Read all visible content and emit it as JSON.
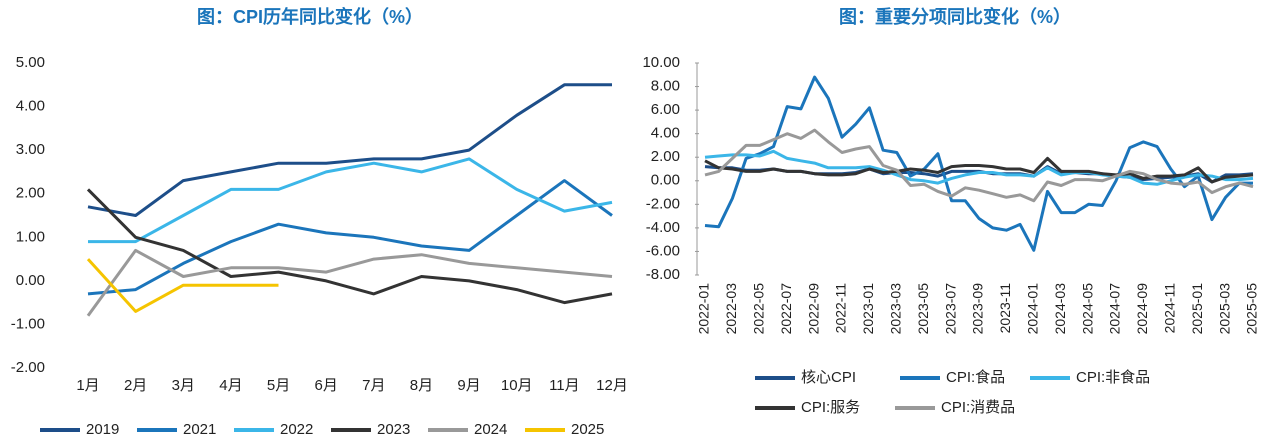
{
  "chart_data": [
    {
      "type": "line",
      "title": "图：CPI历年同比变化（%）",
      "categories": [
        "1月",
        "2月",
        "3月",
        "4月",
        "5月",
        "6月",
        "7月",
        "8月",
        "9月",
        "10月",
        "11月",
        "12月"
      ],
      "ylim": [
        -2,
        5
      ],
      "yticks": [
        {
          "value": -2,
          "label": "-2.00"
        },
        {
          "value": -1,
          "label": "-1.00"
        },
        {
          "value": 0,
          "label": "0.00"
        },
        {
          "value": 1,
          "label": "1.00"
        },
        {
          "value": 2,
          "label": "2.00"
        },
        {
          "value": 3,
          "label": "3.00"
        },
        {
          "value": 4,
          "label": "4.00"
        },
        {
          "value": 5,
          "label": "5.00"
        }
      ],
      "legend": "bottom",
      "series": [
        {
          "name": "2019",
          "color": "#1d4e89",
          "values": [
            1.7,
            1.5,
            2.3,
            2.5,
            2.7,
            2.7,
            2.8,
            2.8,
            3.0,
            3.8,
            4.5,
            4.5
          ]
        },
        {
          "name": "2021",
          "color": "#1b75bb",
          "values": [
            -0.3,
            -0.2,
            0.4,
            0.9,
            1.3,
            1.1,
            1.0,
            0.8,
            0.7,
            1.5,
            2.3,
            1.5
          ]
        },
        {
          "name": "2022",
          "color": "#3bb6e8",
          "values": [
            0.9,
            0.9,
            1.5,
            2.1,
            2.1,
            2.5,
            2.7,
            2.5,
            2.8,
            2.1,
            1.6,
            1.8
          ]
        },
        {
          "name": "2023",
          "color": "#333333",
          "values": [
            2.1,
            1.0,
            0.7,
            0.1,
            0.2,
            0.0,
            -0.3,
            0.1,
            0.0,
            -0.2,
            -0.5,
            -0.3
          ]
        },
        {
          "name": "2024",
          "color": "#999999",
          "values": [
            -0.8,
            0.7,
            0.1,
            0.3,
            0.3,
            0.2,
            0.5,
            0.6,
            0.4,
            0.3,
            0.2,
            0.1
          ]
        },
        {
          "name": "2025",
          "color": "#f5c400",
          "values": [
            0.5,
            -0.7,
            -0.1,
            -0.1,
            -0.1,
            null,
            null,
            null,
            null,
            null,
            null,
            null
          ]
        }
      ]
    },
    {
      "type": "line",
      "title": "图：重要分项同比变化（%）",
      "categories": [
        "2022-01",
        null,
        "2022-03",
        null,
        "2022-05",
        null,
        "2022-07",
        null,
        "2022-09",
        null,
        "2022-11",
        null,
        "2023-01",
        null,
        "2023-03",
        null,
        "2023-05",
        null,
        "2023-07",
        null,
        "2023-09",
        null,
        "2023-11",
        null,
        "2024-01",
        null,
        "2024-03",
        null,
        "2024-05",
        null,
        "2024-07",
        null,
        "2024-09",
        null,
        "2024-11",
        null,
        "2025-01",
        null,
        "2025-03",
        null,
        "2025-05"
      ],
      "ylim": [
        -8,
        10
      ],
      "yticks": [
        {
          "value": -8,
          "label": "-8.00"
        },
        {
          "value": -6,
          "label": "-6.00"
        },
        {
          "value": -4,
          "label": "-4.00"
        },
        {
          "value": -2,
          "label": "-2.00"
        },
        {
          "value": 0,
          "label": "0.00"
        },
        {
          "value": 2,
          "label": "2.00"
        },
        {
          "value": 4,
          "label": "4.00"
        },
        {
          "value": 6,
          "label": "6.00"
        },
        {
          "value": 8,
          "label": "8.00"
        },
        {
          "value": 10,
          "label": "10.00"
        }
      ],
      "legend": "bottom",
      "series": [
        {
          "name": "核心CPI",
          "color": "#1d4e89",
          "values": [
            1.2,
            1.1,
            1.1,
            0.9,
            0.9,
            1.0,
            0.8,
            0.8,
            0.6,
            0.6,
            0.6,
            0.7,
            1.0,
            0.6,
            0.7,
            0.7,
            0.6,
            0.4,
            0.8,
            0.8,
            0.8,
            0.6,
            0.6,
            0.6,
            0.4,
            1.2,
            0.6,
            0.7,
            0.6,
            0.6,
            0.4,
            0.3,
            0.1,
            0.2,
            0.3,
            0.4,
            0.6,
            -0.1,
            0.5,
            0.5,
            0.6
          ]
        },
        {
          "name": "CPI:食品",
          "color": "#1b75bb",
          "values": [
            -3.8,
            -3.9,
            -1.5,
            1.9,
            2.3,
            2.9,
            6.3,
            6.1,
            8.8,
            7.0,
            3.7,
            4.8,
            6.2,
            2.6,
            2.4,
            0.4,
            1.0,
            2.3,
            -1.7,
            -1.7,
            -3.2,
            -4.0,
            -4.2,
            -3.7,
            -5.9,
            -0.9,
            -2.7,
            -2.7,
            -2.0,
            -2.1,
            0.0,
            2.8,
            3.3,
            2.9,
            1.0,
            -0.5,
            0.4,
            -3.3,
            -1.4,
            -0.2,
            -0.2
          ]
        },
        {
          "name": "CPI:非食品",
          "color": "#3bb6e8",
          "values": [
            2.0,
            2.1,
            2.2,
            2.2,
            2.1,
            2.5,
            1.9,
            1.7,
            1.5,
            1.1,
            1.1,
            1.1,
            1.2,
            0.9,
            0.5,
            0.1,
            0.0,
            -0.2,
            0.2,
            0.5,
            0.7,
            0.7,
            0.5,
            0.5,
            0.4,
            1.1,
            0.5,
            0.7,
            0.7,
            0.5,
            0.4,
            0.3,
            -0.2,
            -0.3,
            0.0,
            0.3,
            0.5,
            0.4,
            0.1,
            0.1,
            0.2
          ]
        },
        {
          "name": "CPI:服务",
          "color": "#333333",
          "values": [
            1.7,
            1.1,
            1.0,
            0.8,
            0.8,
            1.0,
            0.8,
            0.8,
            0.6,
            0.5,
            0.5,
            0.6,
            1.0,
            0.7,
            0.8,
            1.0,
            0.9,
            0.7,
            1.2,
            1.3,
            1.3,
            1.2,
            1.0,
            1.0,
            0.7,
            1.9,
            0.8,
            0.8,
            0.8,
            0.6,
            0.5,
            0.6,
            0.2,
            0.4,
            0.4,
            0.5,
            1.1,
            -0.1,
            0.3,
            0.4,
            0.5
          ]
        },
        {
          "name": "CPI:消费品",
          "color": "#999999",
          "values": [
            0.5,
            0.8,
            1.9,
            3.0,
            3.0,
            3.5,
            4.0,
            3.6,
            4.3,
            3.3,
            2.4,
            2.7,
            2.9,
            1.3,
            0.9,
            -0.4,
            -0.3,
            -0.9,
            -1.3,
            -0.6,
            -0.8,
            -1.1,
            -1.4,
            -1.2,
            -1.7,
            -0.1,
            -0.4,
            0.1,
            0.1,
            0.0,
            0.4,
            0.8,
            0.6,
            0.1,
            -0.2,
            -0.3,
            -0.1,
            -1.0,
            -0.5,
            -0.2,
            -0.5
          ]
        }
      ]
    }
  ]
}
